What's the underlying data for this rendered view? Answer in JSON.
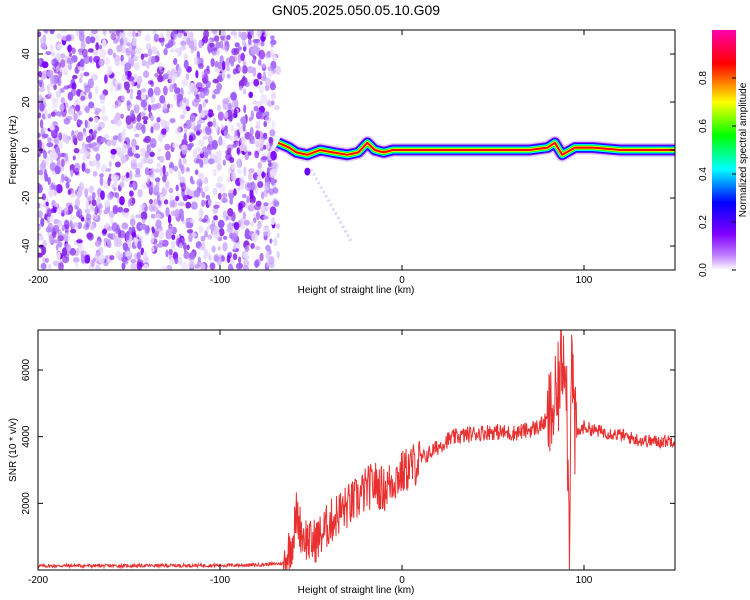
{
  "figure": {
    "title": "GN05.2025.050.05.10.G09"
  },
  "chart_data": [
    {
      "type": "heatmap",
      "title": "",
      "xlabel": "Height of straight line (km)",
      "ylabel": "Frequency (Hz)",
      "xlim": [
        -200,
        150
      ],
      "ylim": [
        -50,
        50
      ],
      "xticks": [
        -200,
        -100,
        0,
        100
      ],
      "yticks": [
        -40,
        -20,
        0,
        20,
        40
      ],
      "colorbar": {
        "label": "Normalized spectral amplitude",
        "range": [
          0,
          1
        ],
        "ticks": [
          0.0,
          0.2,
          0.4,
          0.6,
          0.8
        ],
        "colormap": [
          "#ffffff",
          "#8000ff",
          "#0000ff",
          "#00ffff",
          "#00ff00",
          "#ffff00",
          "#ff0000",
          "#ff00aa"
        ]
      },
      "regions": [
        {
          "x_range": [
            -200,
            -68
          ],
          "y_range": [
            -50,
            50
          ],
          "description_value": "noise",
          "amplitude": 0.1
        },
        {
          "x_range": [
            -68,
            150
          ],
          "y_center": 0,
          "amplitude": 0.9
        }
      ],
      "ridge": [
        {
          "x": -68,
          "y": 3
        },
        {
          "x": -62,
          "y": 1
        },
        {
          "x": -58,
          "y": -1
        },
        {
          "x": -52,
          "y": -2
        },
        {
          "x": -45,
          "y": 0
        },
        {
          "x": -38,
          "y": -1
        },
        {
          "x": -30,
          "y": -2
        },
        {
          "x": -24,
          "y": -1
        },
        {
          "x": -19,
          "y": 3
        },
        {
          "x": -15,
          "y": 0
        },
        {
          "x": -10,
          "y": -1
        },
        {
          "x": -5,
          "y": 0
        },
        {
          "x": 0,
          "y": 0
        },
        {
          "x": 20,
          "y": 0
        },
        {
          "x": 40,
          "y": 0
        },
        {
          "x": 60,
          "y": 0
        },
        {
          "x": 70,
          "y": 0
        },
        {
          "x": 80,
          "y": 1
        },
        {
          "x": 84,
          "y": 3
        },
        {
          "x": 88,
          "y": -2
        },
        {
          "x": 95,
          "y": 1
        },
        {
          "x": 105,
          "y": 1
        },
        {
          "x": 120,
          "y": 0
        },
        {
          "x": 150,
          "y": 0
        }
      ]
    },
    {
      "type": "line",
      "title": "",
      "xlabel": "Height of straight line (km)",
      "ylabel": "SNR (10 * v/v)",
      "xlim": [
        -200,
        150
      ],
      "ylim": [
        0,
        7200
      ],
      "xticks": [
        -200,
        -100,
        0,
        100
      ],
      "yticks": [
        2000,
        4000,
        6000
      ],
      "series": [
        {
          "color": "#e83030",
          "x": [
            -200,
            -180,
            -160,
            -140,
            -120,
            -100,
            -80,
            -65,
            -60,
            -58,
            -55,
            -50,
            -45,
            -40,
            -35,
            -30,
            -25,
            -20,
            -15,
            -10,
            -5,
            0,
            5,
            10,
            15,
            20,
            25,
            30,
            40,
            50,
            60,
            70,
            75,
            80,
            85,
            88,
            90,
            92,
            93,
            95,
            100,
            105,
            110,
            120,
            130,
            140,
            150
          ],
          "y": [
            120,
            130,
            125,
            130,
            135,
            140,
            150,
            200,
            900,
            1700,
            1100,
            800,
            1000,
            1400,
            1700,
            1900,
            2100,
            2400,
            2600,
            2400,
            2700,
            2900,
            3100,
            3300,
            3500,
            3700,
            3900,
            4000,
            4100,
            4150,
            4100,
            4200,
            4300,
            4500,
            5000,
            6400,
            6800,
            600,
            7000,
            4000,
            4300,
            4200,
            4150,
            4050,
            3900,
            3850,
            3900
          ]
        }
      ]
    }
  ]
}
